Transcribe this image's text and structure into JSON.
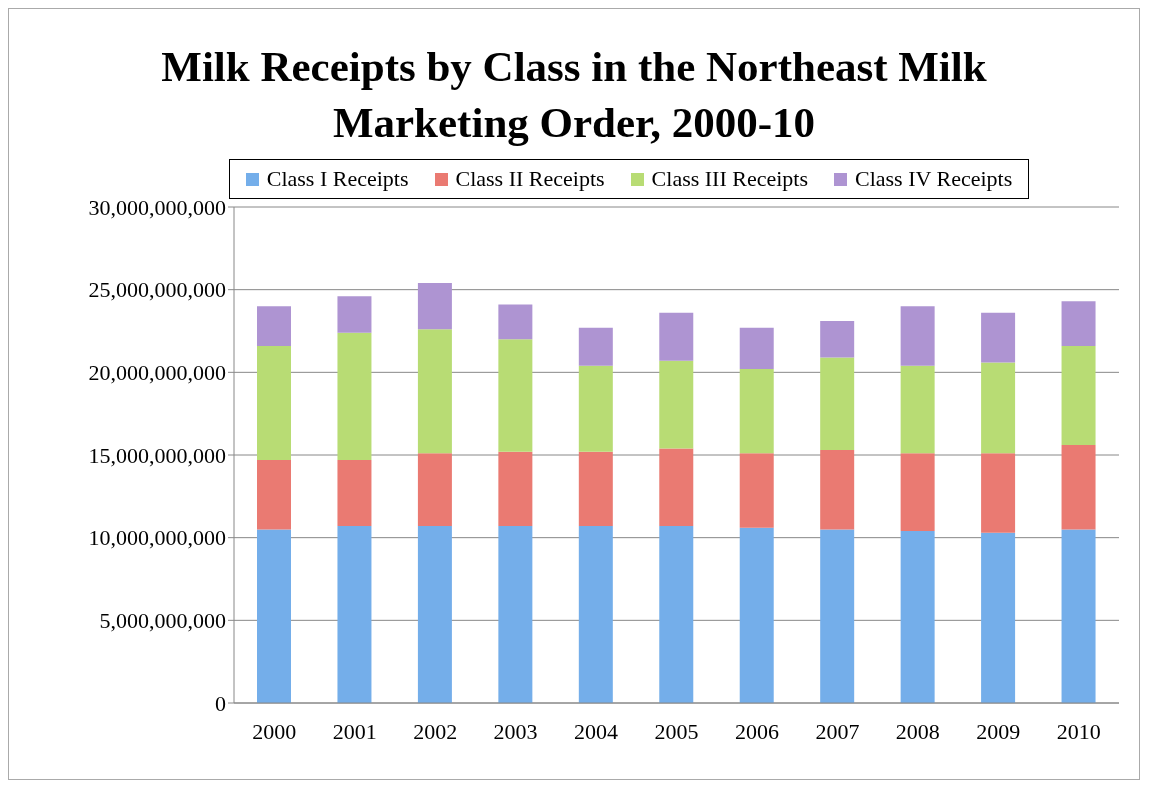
{
  "chart_data": {
    "type": "bar",
    "title": "Milk Receipts by Class in the Northeast Milk Marketing Order, 2000-10",
    "stacked": true,
    "categories": [
      "2000",
      "2001",
      "2002",
      "2003",
      "2004",
      "2005",
      "2006",
      "2007",
      "2008",
      "2009",
      "2010"
    ],
    "series": [
      {
        "name": "Class I Receipts",
        "color": "#74aeea",
        "values": [
          10500000000,
          10700000000,
          10700000000,
          10700000000,
          10700000000,
          10700000000,
          10600000000,
          10500000000,
          10400000000,
          10300000000,
          10500000000
        ]
      },
      {
        "name": "Class II Receipts",
        "color": "#ea7a72",
        "values": [
          4200000000,
          4000000000,
          4400000000,
          4500000000,
          4500000000,
          4700000000,
          4500000000,
          4800000000,
          4700000000,
          4800000000,
          5100000000
        ]
      },
      {
        "name": "Class III Receipts",
        "color": "#b8dc74",
        "values": [
          6900000000,
          7700000000,
          7500000000,
          6800000000,
          5200000000,
          5300000000,
          5100000000,
          5600000000,
          5300000000,
          5500000000,
          6000000000
        ]
      },
      {
        "name": "Class IV Receipts",
        "color": "#ae94d2",
        "values": [
          2400000000,
          2200000000,
          2800000000,
          2100000000,
          2300000000,
          2900000000,
          2500000000,
          2200000000,
          3600000000,
          3000000000,
          2700000000
        ]
      }
    ],
    "ylim": [
      0,
      30000000000
    ],
    "yticks": [
      0,
      {
        "value": 5000000000,
        "label": "5,000,000,000"
      },
      {
        "value": 10000000000,
        "label": "10,000,000,000"
      },
      {
        "value": 15000000000,
        "label": "15,000,000,000"
      },
      {
        "value": 20000000000,
        "label": "20,000,000,000"
      },
      {
        "value": 25000000000,
        "label": "25,000,000,000"
      },
      {
        "value": 30000000000,
        "label": "30,000,000,000"
      }
    ],
    "grid": "y",
    "legend": "top"
  }
}
